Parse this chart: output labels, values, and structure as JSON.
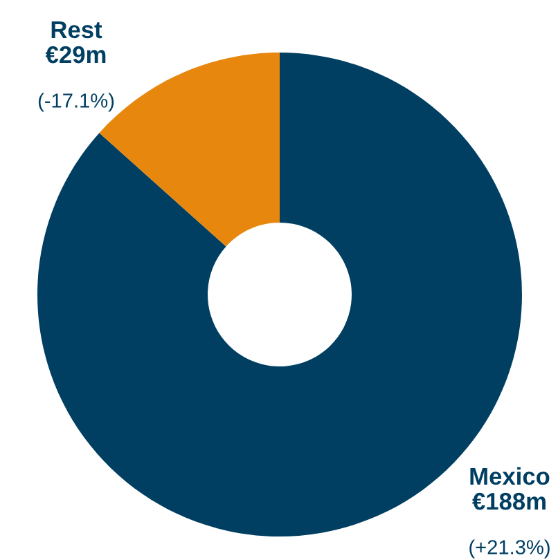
{
  "chart_data": {
    "type": "donut",
    "categories": [
      "Mexico",
      "Rest"
    ],
    "values": [
      188,
      29
    ],
    "colors": [
      "#003f62",
      "#e8870e"
    ],
    "value_labels": [
      "€188m",
      "€29m"
    ],
    "annotations": [
      "(+21.3%)",
      "(-17.1%)"
    ]
  }
}
